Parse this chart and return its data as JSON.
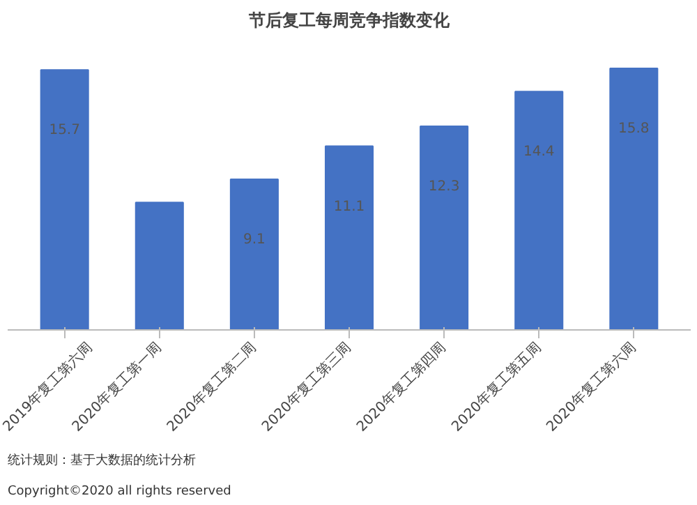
{
  "chart_data": {
    "type": "bar",
    "title": "节后复工每周竞争指数变化",
    "categories": [
      "2019年复工第六周",
      "2020年复工第一周",
      "2020年复工第二周",
      "2020年复工第三周",
      "2020年复工第四周",
      "2020年复工第五周",
      "2020年复工第六周"
    ],
    "values": [
      15.7,
      7.7,
      9.1,
      11.1,
      12.3,
      14.4,
      15.8
    ],
    "value_labels": [
      "15.7",
      null,
      "9.1",
      "11.1",
      "12.3",
      "14.4",
      "15.8"
    ],
    "color": "#4472c4",
    "grid": false,
    "tick_labels": "x",
    "annotations": [
      "统计规则：基于大数据的统计分析",
      "Copyright©2020 all rights reserved"
    ]
  }
}
